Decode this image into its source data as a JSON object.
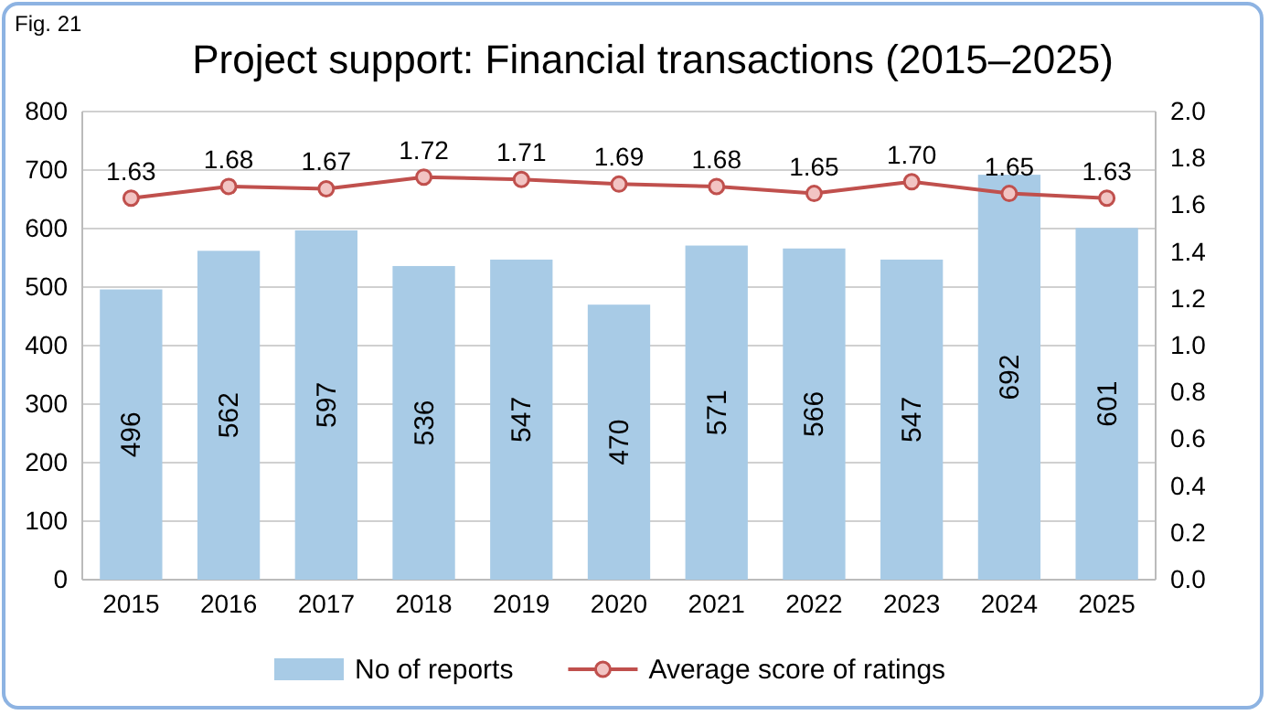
{
  "chart_data": {
    "type": "bar",
    "title": "Project support: Financial transactions (2015–2025)",
    "annotations": [
      "Fig. 21"
    ],
    "categories": [
      "2015",
      "2016",
      "2017",
      "2018",
      "2019",
      "2020",
      "2021",
      "2022",
      "2023",
      "2024",
      "2025"
    ],
    "series": [
      {
        "name": "No of reports",
        "color": "#a8cbe6",
        "values": [
          496,
          562,
          597,
          536,
          547,
          470,
          571,
          566,
          547,
          692,
          601
        ]
      },
      {
        "name": "Average score of ratings",
        "type": "line",
        "axis": "y2",
        "color": "#c0504d",
        "marker": "circle",
        "values": [
          1.63,
          1.68,
          1.67,
          1.72,
          1.71,
          1.69,
          1.68,
          1.65,
          1.7,
          1.65,
          1.63
        ],
        "value_labels": [
          "1.63",
          "1.68",
          "1.67",
          "1.72",
          "1.71",
          "1.69",
          "1.68",
          "1.65",
          "1.70",
          "1.65",
          "1.63"
        ]
      }
    ],
    "ylim": [
      0,
      800
    ],
    "yticks": [
      0,
      100,
      200,
      300,
      400,
      500,
      600,
      700,
      800
    ],
    "y2lim": [
      0,
      2.0
    ],
    "y2ticks": [
      {
        "value": 0,
        "label": "0.0"
      },
      {
        "value": 0.2,
        "label": "0.2"
      },
      {
        "value": 0.4,
        "label": "0.4"
      },
      {
        "value": 0.6,
        "label": "0.6"
      },
      {
        "value": 0.8,
        "label": "0.8"
      },
      {
        "value": 1,
        "label": "1.0"
      },
      {
        "value": 1.2,
        "label": "1.2"
      },
      {
        "value": 1.4,
        "label": "1.4"
      },
      {
        "value": 1.6,
        "label": "1.6"
      },
      {
        "value": 1.8,
        "label": "1.8"
      },
      {
        "value": 2,
        "label": "2.0"
      }
    ],
    "grid": "y",
    "legend": "bottom",
    "data_labels": true
  }
}
